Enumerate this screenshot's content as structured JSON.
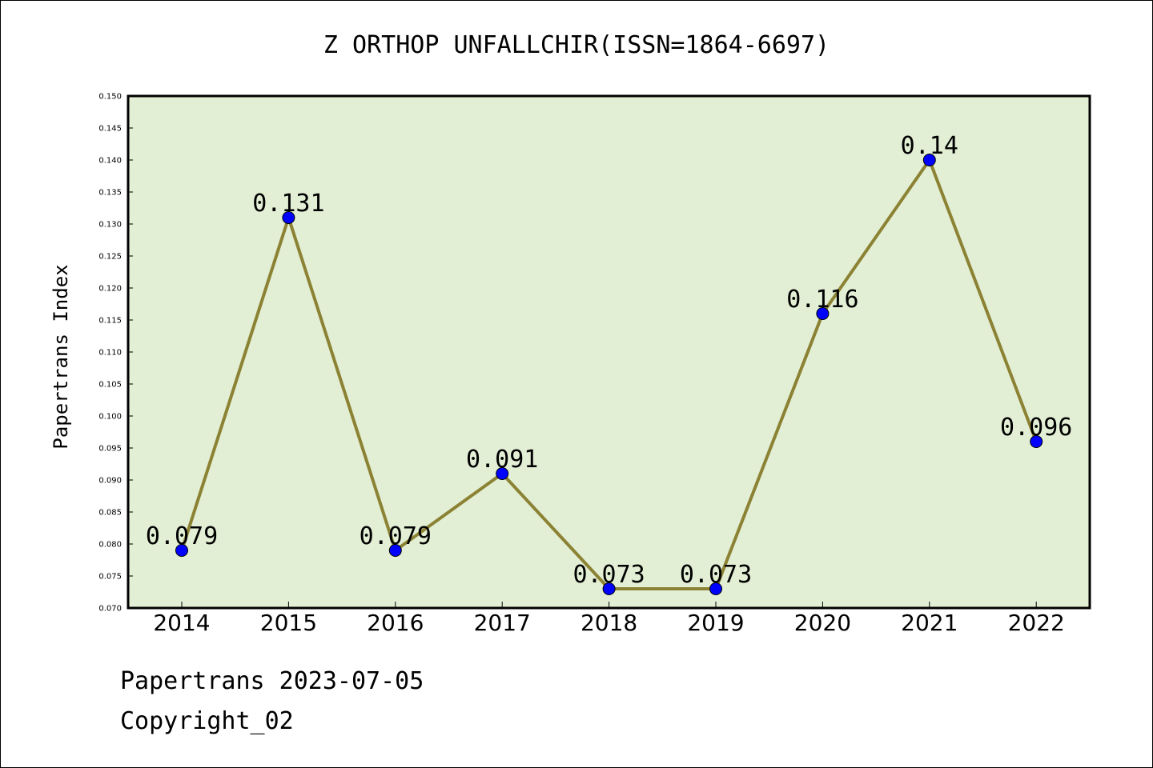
{
  "chart_data": {
    "type": "line",
    "title": "Z ORTHOP UNFALLCHIR(ISSN=1864-6697)",
    "xlabel": "",
    "ylabel": "Papertrans Index",
    "categories": [
      "2014",
      "2015",
      "2016",
      "2017",
      "2018",
      "2019",
      "2020",
      "2021",
      "2022"
    ],
    "series": [
      {
        "values": [
          0.079,
          0.131,
          0.079,
          0.091,
          0.073,
          0.073,
          0.116,
          0.14,
          0.096
        ],
        "labels": [
          "0.079",
          "0.131",
          "0.079",
          "0.091",
          "0.073",
          "0.073",
          "0.116",
          "0.14",
          "0.096"
        ]
      }
    ],
    "ylim": [
      0.07,
      0.15
    ],
    "yticks": [
      "0.070",
      "0.075",
      "0.080",
      "0.085",
      "0.090",
      "0.095",
      "0.100",
      "0.105",
      "0.110",
      "0.115",
      "0.120",
      "0.125",
      "0.130",
      "0.135",
      "0.140",
      "0.145",
      "0.150"
    ],
    "grid": false,
    "legend": "none",
    "colors": {
      "plot_background": "#e2efd5",
      "line": "#8c8234",
      "marker": "#0000ff"
    }
  },
  "footer": {
    "line1": "Papertrans 2023-07-05",
    "line2": "Copyright_02"
  }
}
